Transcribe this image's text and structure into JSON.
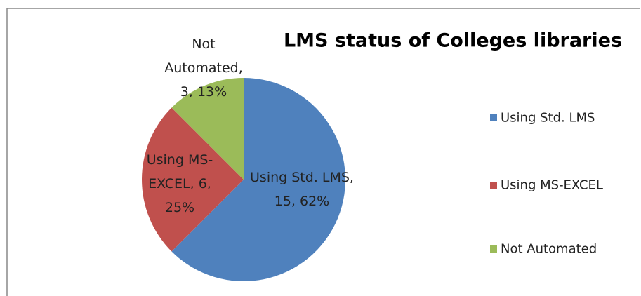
{
  "chart_data": {
    "type": "pie",
    "title": "LMS status of Colleges libraries",
    "categories": [
      "Using Std. LMS",
      "Using MS-EXCEL",
      "Not Automated"
    ],
    "values": [
      15,
      6,
      3
    ],
    "value_labels": [
      "Using Std. LMS, 15, 62%",
      "Using MS-EXCEL, 6, 25%",
      "Not Automated, 3, 13%"
    ],
    "colors": [
      "#4f81bd",
      "#c0504d",
      "#9bbb59"
    ],
    "legend": "right"
  }
}
